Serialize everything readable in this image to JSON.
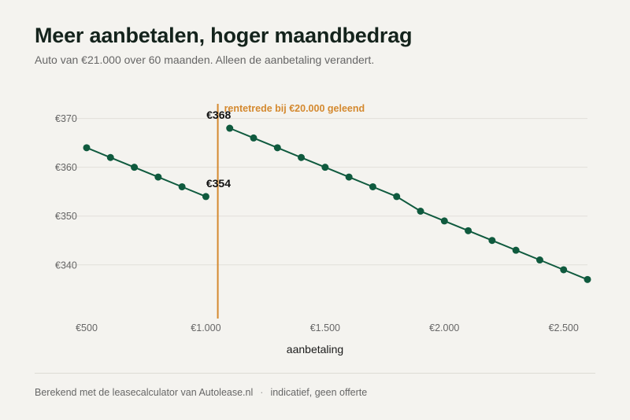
{
  "header": {
    "title": "Meer aanbetalen, hoger maandbedrag",
    "subtitle": "Auto van €21.000 over 60 maanden. Alleen de aanbetaling verandert."
  },
  "footer": {
    "source": "Berekend met de leasecalculator van Autolease.nl",
    "separator": "·",
    "note": "indicatief, geen offerte"
  },
  "colors": {
    "line": "#0f5a3e",
    "accent": "#d4892f",
    "grid": "#e2e0da",
    "tick": "#666666"
  },
  "chart_data": {
    "type": "line",
    "xlabel": "aanbetaling",
    "ylabel": "",
    "xlim": [
      500,
      2600
    ],
    "ylim": [
      329,
      373
    ],
    "x_ticks": [
      500,
      1000,
      1500,
      2000,
      2500
    ],
    "x_tick_labels": [
      "€500",
      "€1.000",
      "€1.500",
      "€2.000",
      "€2.500"
    ],
    "y_ticks": [
      340,
      350,
      360,
      370
    ],
    "y_tick_labels": [
      "€340",
      "€350",
      "€360",
      "€370"
    ],
    "grid": true,
    "series": [
      {
        "segments": [
          {
            "x": [
              500,
              600,
              700,
              800,
              900,
              1000
            ],
            "y": [
              364,
              362,
              360,
              358,
              356,
              354
            ]
          },
          {
            "x": [
              1100,
              1200,
              1300,
              1400,
              1500,
              1600,
              1700,
              1800,
              1900,
              2000,
              2100,
              2200,
              2300,
              2400,
              2500,
              2600
            ],
            "y": [
              368,
              366,
              364,
              362,
              360,
              358,
              356,
              354,
              351,
              349,
              347,
              345,
              343,
              341,
              339,
              337
            ]
          }
        ]
      }
    ],
    "threshold": {
      "x": 1050,
      "label": "rentetrede bij €20.000 geleend"
    },
    "annotations": [
      {
        "x": 1000,
        "y": 354,
        "text": "€354"
      },
      {
        "x": 1100,
        "y": 368,
        "text": "€368"
      }
    ]
  }
}
